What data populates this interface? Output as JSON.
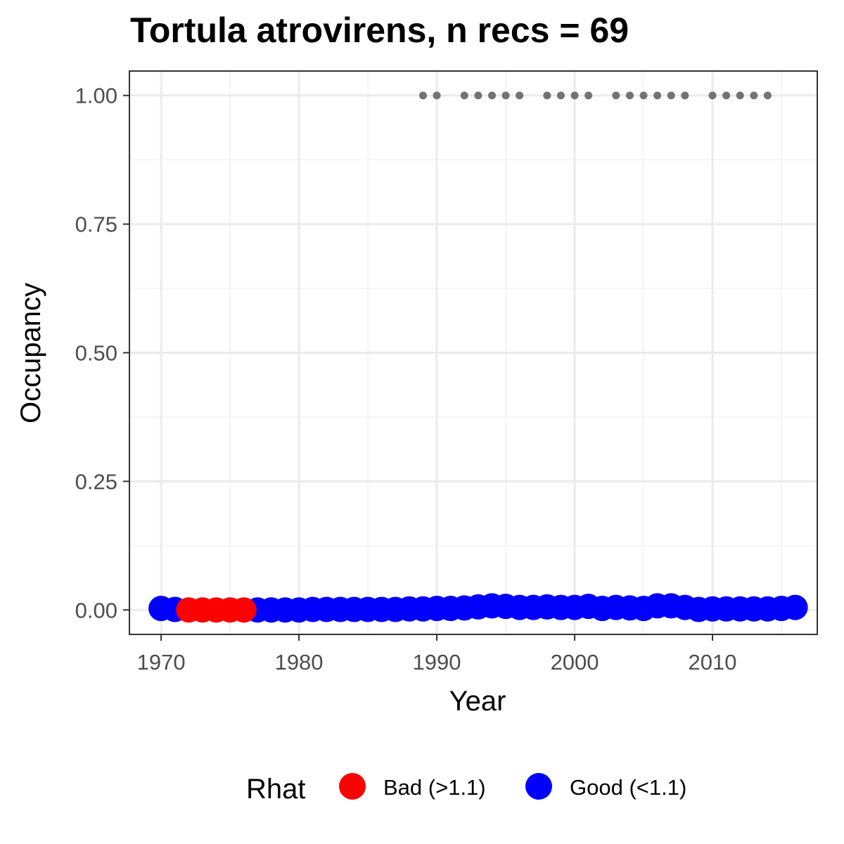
{
  "chart_data": {
    "type": "scatter",
    "title": "Tortula atrovirens, n recs = 69",
    "xlabel": "Year",
    "ylabel": "Occupancy",
    "xlim": [
      1967.7,
      2017.6
    ],
    "ylim": [
      -0.0475,
      1.0475
    ],
    "x_ticks": [
      1970,
      1980,
      1990,
      2000,
      2010
    ],
    "x_tick_labels": [
      "1970",
      "1980",
      "1990",
      "2000",
      "2010"
    ],
    "y_ticks": [
      0.0,
      0.25,
      0.5,
      0.75,
      1.0
    ],
    "y_tick_labels": [
      "0.00",
      "0.25",
      "0.50",
      "0.75",
      "1.00"
    ],
    "grid": true,
    "legend": {
      "title": "Rhat",
      "placement": "bottom",
      "entries": [
        {
          "label": "Bad (>1.1)",
          "color": "#ff0000"
        },
        {
          "label": "Good (<1.1)",
          "color": "#0000ff"
        }
      ]
    },
    "series": [
      {
        "name": "Good (<1.1)",
        "color": "#0000ff",
        "x": [
          1970,
          1971,
          1977,
          1978,
          1979,
          1980,
          1981,
          1982,
          1983,
          1984,
          1985,
          1986,
          1987,
          1988,
          1989,
          1990,
          1991,
          1992,
          1993,
          1994,
          1995,
          1996,
          1997,
          1998,
          1999,
          2000,
          2001,
          2002,
          2003,
          2004,
          2005,
          2006,
          2007,
          2008,
          2009,
          2010,
          2011,
          2012,
          2013,
          2014,
          2015,
          2016
        ],
        "y": [
          0.003,
          0.001,
          0.0,
          0.0,
          0.0,
          0.0,
          0.001,
          0.001,
          0.001,
          0.001,
          0.001,
          0.001,
          0.001,
          0.002,
          0.002,
          0.003,
          0.003,
          0.004,
          0.006,
          0.008,
          0.007,
          0.005,
          0.005,
          0.006,
          0.005,
          0.005,
          0.007,
          0.003,
          0.005,
          0.004,
          0.003,
          0.008,
          0.008,
          0.005,
          0.001,
          0.002,
          0.002,
          0.002,
          0.002,
          0.002,
          0.003,
          0.005
        ]
      },
      {
        "name": "Bad (>1.1)",
        "color": "#ff0000",
        "x": [
          1972,
          1973,
          1974,
          1975,
          1976
        ],
        "y": [
          0.0,
          0.0,
          0.0,
          0.0,
          0.0
        ]
      },
      {
        "name": "records",
        "color": "#737373",
        "x": [
          1989,
          1990,
          1992,
          1993,
          1994,
          1995,
          1996,
          1998,
          1999,
          2000,
          2001,
          2003,
          2004,
          2005,
          2006,
          2007,
          2008,
          2010,
          2011,
          2012,
          2013,
          2014
        ],
        "y": [
          1,
          1,
          1,
          1,
          1,
          1,
          1,
          1,
          1,
          1,
          1,
          1,
          1,
          1,
          1,
          1,
          1,
          1,
          1,
          1,
          1,
          1
        ]
      }
    ]
  }
}
